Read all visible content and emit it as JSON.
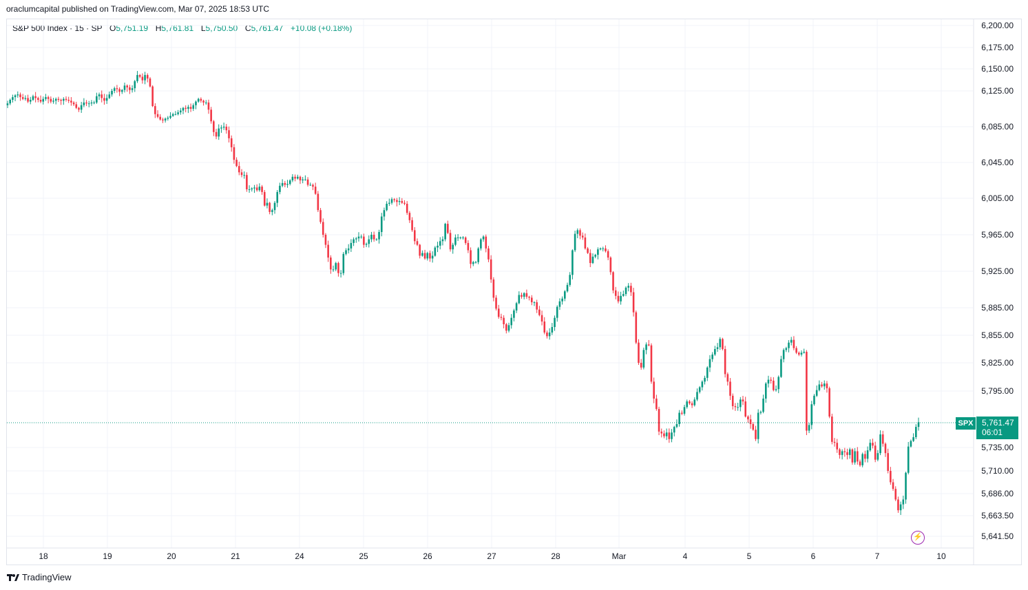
{
  "header": {
    "published_text": "oraclumcapital published on TradingView.com, Mar 07, 2025 18:53 UTC"
  },
  "legend": {
    "symbol": "S&P 500 Index · 15 · SP",
    "open_label": "O",
    "open": "5,751.19",
    "high_label": "H",
    "high": "5,761.81",
    "low_label": "L",
    "low": "5,750.50",
    "close_label": "C",
    "close": "5,761.47",
    "change": "+10.08 (+0.18%)"
  },
  "price_tag": {
    "symbol": "SPX",
    "price": "5,761.47",
    "countdown": "06:01"
  },
  "footer": {
    "brand": "TradingView"
  },
  "colors": {
    "up": "#089981",
    "down": "#f23645",
    "grid": "#f0f3fa",
    "border": "#e0e3eb",
    "accent": "#9c27b0"
  },
  "chart_data": {
    "type": "candlestick",
    "title": "S&P 500 Index · 15 · SP",
    "y_ticks": [
      "6,200.00",
      "6,175.00",
      "6,150.00",
      "6,125.00",
      "6,085.00",
      "6,045.00",
      "6,005.00",
      "5,965.00",
      "5,925.00",
      "5,885.00",
      "5,855.00",
      "5,825.00",
      "5,795.00",
      "5,761.47",
      "5,735.00",
      "5,710.00",
      "5,686.00",
      "5,663.50",
      "5,641.50"
    ],
    "x_ticks": [
      "18",
      "19",
      "20",
      "21",
      "24",
      "25",
      "26",
      "27",
      "28",
      "Mar",
      "4",
      "5",
      "6",
      "7",
      "10"
    ],
    "last_price": 5761.47,
    "series": [
      {
        "name": "SPX 15m",
        "close": [
          6111,
          6115,
          6118,
          6120,
          6121,
          6118,
          6116,
          6117,
          6113,
          6115,
          6119,
          6117,
          6115,
          6113,
          6116,
          6118,
          6116,
          6113,
          6114,
          6116,
          6115,
          6114,
          6116,
          6115,
          6114,
          6112,
          6110,
          6106,
          6104,
          6109,
          6112,
          6111,
          6111,
          6112,
          6112,
          6119,
          6121,
          6117,
          6114,
          6117,
          6121,
          6125,
          6128,
          6127,
          6124,
          6126,
          6131,
          6129,
          6126,
          6128,
          6136,
          6143,
          6141,
          6137,
          6143,
          6139,
          6130,
          6108,
          6099,
          6096,
          6093,
          6092,
          6094,
          6095,
          6097,
          6099,
          6099,
          6101,
          6103,
          6106,
          6105,
          6107,
          6105,
          6109,
          6113,
          6116,
          6114,
          6112,
          6112,
          6104,
          6091,
          6079,
          6074,
          6083,
          6084,
          6085,
          6081,
          6072,
          6062,
          6048,
          6041,
          6034,
          6031,
          6031,
          6015,
          6015,
          6016,
          6017,
          6014,
          6018,
          6012,
          5997,
          6000,
          5990,
          5992,
          6000,
          6012,
          6019,
          6022,
          6020,
          6021,
          6025,
          6029,
          6027,
          6029,
          6025,
          6026,
          6026,
          6020,
          6020,
          6018,
          6010,
          5992,
          5979,
          5965,
          5954,
          5940,
          5927,
          5927,
          5934,
          5923,
          5923,
          5944,
          5948,
          5950,
          5956,
          5960,
          5961,
          5963,
          5963,
          5954,
          5955,
          5960,
          5965,
          5960,
          5960,
          5968,
          5985,
          5992,
          5999,
          6000,
          6004,
          6003,
          6001,
          6002,
          6000,
          5999,
          5989,
          5981,
          5970,
          5958,
          5954,
          5942,
          5945,
          5939,
          5945,
          5939,
          5942,
          5951,
          5953,
          5958,
          5960,
          5977,
          5967,
          5949,
          5954,
          5962,
          5962,
          5962,
          5962,
          5956,
          5948,
          5933,
          5935,
          5935,
          5950,
          5960,
          5963,
          5950,
          5938,
          5916,
          5896,
          5884,
          5875,
          5874,
          5867,
          5860,
          5866,
          5874,
          5882,
          5890,
          5899,
          5897,
          5901,
          5897,
          5896,
          5891,
          5891,
          5883,
          5877,
          5870,
          5858,
          5854,
          5858,
          5864,
          5874,
          5886,
          5892,
          5895,
          5903,
          5910,
          5921,
          5948,
          5966,
          5970,
          5964,
          5962,
          5950,
          5945,
          5934,
          5941,
          5943,
          5949,
          5950,
          5950,
          5947,
          5940,
          5924,
          5904,
          5898,
          5892,
          5898,
          5900,
          5907,
          5909,
          5902,
          5880,
          5847,
          5825,
          5820,
          5839,
          5845,
          5844,
          5805,
          5787,
          5776,
          5752,
          5750,
          5747,
          5751,
          5744,
          5751,
          5757,
          5760,
          5772,
          5771,
          5778,
          5784,
          5782,
          5780,
          5786,
          5794,
          5799,
          5805,
          5809,
          5820,
          5829,
          5834,
          5840,
          5842,
          5851,
          5840,
          5813,
          5805,
          5790,
          5779,
          5778,
          5778,
          5786,
          5784,
          5768,
          5765,
          5760,
          5754,
          5744,
          5772,
          5773,
          5787,
          5803,
          5807,
          5806,
          5796,
          5797,
          5810,
          5829,
          5839,
          5841,
          5847,
          5850,
          5841,
          5836,
          5834,
          5836,
          5837,
          5753,
          5759,
          5781,
          5790,
          5796,
          5802,
          5800,
          5803,
          5798,
          5768,
          5741,
          5740,
          5733,
          5727,
          5731,
          5730,
          5727,
          5733,
          5719,
          5731,
          5720,
          5716,
          5728,
          5723,
          5732,
          5740,
          5737,
          5722,
          5729,
          5749,
          5739,
          5729,
          5710,
          5698,
          5691,
          5680,
          5669,
          5675,
          5680,
          5708,
          5736,
          5742,
          5746,
          5757,
          5762
        ]
      }
    ]
  }
}
